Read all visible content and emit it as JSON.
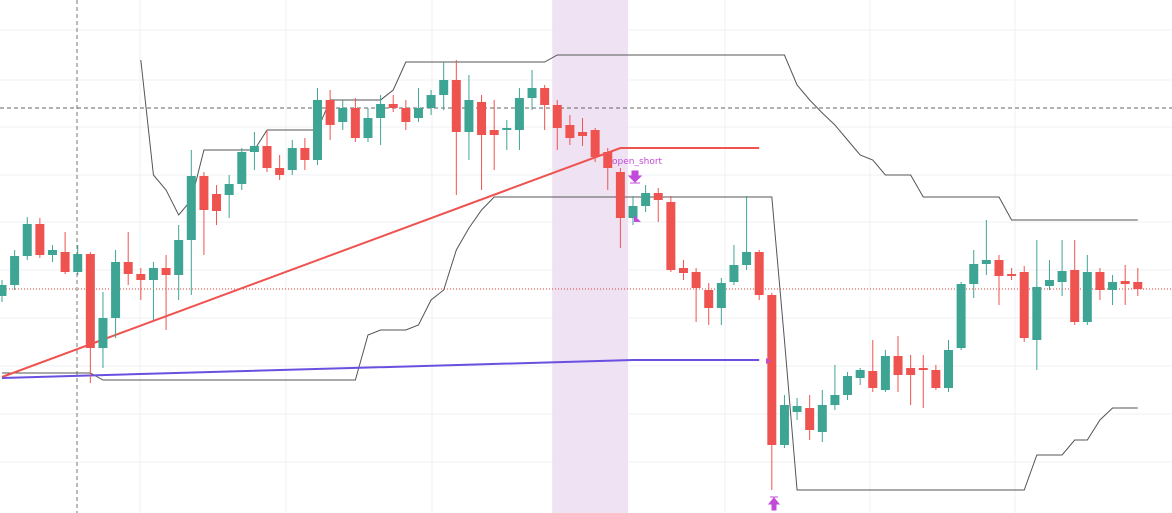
{
  "chart_data": {
    "type": "candlestick",
    "ylim": [
      0,
      513
    ],
    "yticks": [
      483,
      433,
      386,
      338,
      291,
      243,
      195,
      147,
      99,
      51
    ],
    "grid": true,
    "up_color": "#3ea595",
    "down_color": "#ef5350",
    "open": [
      217,
      228,
      257,
      289,
      258,
      261,
      241,
      259,
      165,
      195,
      251,
      239,
      233,
      245,
      238,
      273,
      337,
      319,
      318,
      329,
      361,
      367,
      345,
      343,
      365,
      353,
      413,
      391,
      405,
      375,
      395,
      409,
      405,
      395,
      405,
      418,
      433,
      381,
      411,
      383,
      383,
      383,
      415,
      425,
      408,
      388,
      381,
      383,
      361,
      341,
      295,
      307,
      320,
      311,
      245,
      241,
      223,
      205,
      231,
      248,
      261,
      218,
      68,
      101,
      105,
      81,
      108,
      118,
      135,
      142,
      123,
      157,
      145,
      145,
      143,
      125,
      165,
      229,
      249,
      253,
      239,
      241,
      173,
      227,
      231,
      243,
      191,
      241,
      223,
      232,
      231
    ],
    "high": [
      233,
      263,
      296,
      295,
      268,
      281,
      268,
      261,
      221,
      263,
      281,
      245,
      251,
      258,
      288,
      363,
      341,
      328,
      338,
      365,
      381,
      383,
      358,
      373,
      375,
      425,
      423,
      413,
      415,
      405,
      418,
      418,
      413,
      425,
      423,
      451,
      453,
      438,
      418,
      413,
      393,
      425,
      443,
      428,
      413,
      398,
      395,
      385,
      365,
      345,
      317,
      328,
      325,
      317,
      253,
      245,
      230,
      235,
      268,
      317,
      263,
      220,
      118,
      115,
      118,
      123,
      148,
      141,
      145,
      173,
      163,
      177,
      158,
      158,
      148,
      173,
      231,
      263,
      293,
      258,
      245,
      247,
      273,
      253,
      273,
      273,
      258,
      245,
      238,
      248,
      245
    ],
    "low": [
      211,
      223,
      253,
      255,
      251,
      239,
      238,
      130,
      145,
      175,
      228,
      213,
      193,
      183,
      213,
      218,
      258,
      288,
      295,
      323,
      343,
      341,
      333,
      338,
      343,
      348,
      373,
      383,
      371,
      371,
      368,
      401,
      383,
      391,
      398,
      403,
      318,
      353,
      323,
      343,
      363,
      363,
      403,
      383,
      363,
      368,
      367,
      351,
      323,
      265,
      288,
      301,
      291,
      241,
      233,
      191,
      188,
      188,
      228,
      243,
      213,
      23,
      65,
      93,
      73,
      71,
      103,
      113,
      128,
      121,
      121,
      121,
      108,
      105,
      123,
      121,
      163,
      215,
      238,
      208,
      233,
      171,
      143,
      223,
      217,
      188,
      188,
      213,
      208,
      208,
      217
    ],
    "close": [
      228,
      257,
      289,
      258,
      263,
      241,
      259,
      165,
      195,
      251,
      239,
      233,
      245,
      238,
      273,
      337,
      303,
      302,
      329,
      361,
      367,
      345,
      338,
      365,
      353,
      413,
      388,
      405,
      375,
      395,
      409,
      405,
      391,
      405,
      418,
      433,
      381,
      413,
      378,
      378,
      385,
      415,
      425,
      408,
      385,
      375,
      377,
      356,
      345,
      295,
      307,
      320,
      313,
      243,
      240,
      225,
      205,
      230,
      248,
      261,
      218,
      68,
      108,
      107,
      83,
      108,
      118,
      137,
      143,
      125,
      157,
      138,
      138,
      143,
      125,
      163,
      229,
      249,
      253,
      237,
      237,
      175,
      226,
      233,
      242,
      191,
      241,
      223,
      231,
      229,
      224
    ],
    "upper_band": [
      null,
      null,
      null,
      null,
      null,
      null,
      null,
      null,
      null,
      null,
      null,
      453,
      338,
      323,
      298,
      313,
      363,
      363,
      363,
      363,
      363,
      383,
      383,
      383,
      383,
      383,
      413,
      413,
      413,
      413,
      413,
      423,
      451,
      451,
      451,
      451,
      451,
      451,
      451,
      451,
      451,
      451,
      451,
      451,
      458,
      458,
      458,
      458,
      458,
      458,
      458,
      458,
      458,
      458,
      458,
      458,
      458,
      458,
      458,
      458,
      458,
      458,
      458,
      428,
      413,
      400,
      388,
      373,
      358,
      353,
      338,
      338,
      338,
      316,
      316,
      316,
      316,
      316,
      316,
      316,
      293,
      293,
      293,
      293,
      293,
      293,
      293,
      293,
      293,
      293,
      293
    ],
    "lower_band": [
      140,
      140,
      140,
      140,
      140,
      140,
      140,
      140,
      133,
      133,
      133,
      133,
      133,
      133,
      133,
      133,
      133,
      133,
      133,
      133,
      133,
      133,
      133,
      133,
      133,
      133,
      133,
      133,
      133,
      178,
      183,
      183,
      183,
      188,
      213,
      223,
      263,
      285,
      303,
      316,
      316,
      316,
      316,
      316,
      316,
      316,
      316,
      316,
      316,
      316,
      316,
      316,
      316,
      316,
      316,
      316,
      316,
      316,
      316,
      316,
      316,
      316,
      173,
      23,
      23,
      23,
      23,
      23,
      23,
      23,
      23,
      23,
      23,
      23,
      23,
      23,
      23,
      23,
      23,
      23,
      23,
      23,
      58,
      58,
      58,
      73,
      73,
      93,
      105,
      105,
      105
    ],
    "band_color": "#555555",
    "lines": [
      {
        "color": "#ef5350",
        "x": [
          0,
          49,
          60
        ],
        "values": [
          136,
          365,
          365
        ]
      },
      {
        "color": "#6a4fe0",
        "x": [
          0,
          50,
          60
        ],
        "values": [
          135,
          153,
          153
        ]
      }
    ],
    "hlines": [
      {
        "value": 405,
        "color": "#666666"
      },
      {
        "value": 224,
        "color": "#e53935"
      }
    ],
    "highlight": [
      43.6,
      49.6
    ],
    "annotation": {
      "text": "open_short"
    }
  }
}
